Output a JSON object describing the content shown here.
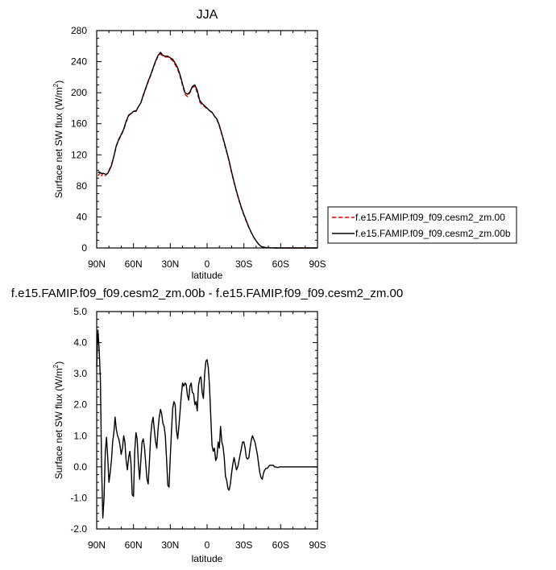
{
  "chart_data": [
    {
      "type": "line",
      "title": "JJA",
      "xlabel": "latitude",
      "ylabel_main": "Surface net SW flux (W/m",
      "ylabel_sup": "2",
      "ylabel_close": ")",
      "xlim": [
        90,
        -90
      ],
      "ylim": [
        0,
        280
      ],
      "x_ticks": [
        90,
        60,
        30,
        0,
        -30,
        -60,
        -90
      ],
      "x_tick_labels": [
        "90N",
        "60N",
        "30N",
        "0",
        "30S",
        "60S",
        "90S"
      ],
      "y_ticks": [
        0,
        40,
        80,
        120,
        160,
        200,
        240,
        280
      ],
      "y_tick_labels": [
        "0",
        "40",
        "80",
        "120",
        "160",
        "200",
        "240",
        "280"
      ],
      "legend_position": "right",
      "series": [
        {
          "name": "f.e15.FAMIP.f09_f09.cesm2_zm.00",
          "color": "#e00000",
          "dash": "dashed",
          "x": [
            89,
            88,
            87,
            86,
            85,
            84,
            83,
            82,
            81,
            80,
            78,
            76,
            74,
            72,
            70,
            68,
            66,
            64,
            62,
            60,
            58,
            56,
            54,
            52,
            50,
            48,
            46,
            44,
            42,
            40,
            38,
            36,
            34,
            32,
            30,
            28,
            26,
            24,
            22,
            20,
            18,
            16,
            14,
            12,
            10,
            8,
            6,
            4,
            2,
            0,
            -2,
            -4,
            -6,
            -8,
            -10,
            -12,
            -14,
            -16,
            -18,
            -20,
            -22,
            -24,
            -26,
            -28,
            -30,
            -32,
            -34,
            -36,
            -38,
            -40,
            -42,
            -44,
            -46,
            -48,
            -50,
            -52,
            -54,
            -56,
            -58,
            -60,
            -62,
            -64,
            -66,
            -68,
            -70,
            -72,
            -75,
            -80,
            -85,
            -90
          ],
          "y": [
            93,
            95,
            97,
            93,
            96,
            95,
            93,
            95,
            97,
            100,
            107,
            118,
            131,
            139,
            145,
            152,
            162,
            170,
            174,
            176,
            177,
            182,
            187,
            196,
            205,
            214,
            222,
            231,
            240,
            247,
            250,
            247,
            246,
            246,
            244,
            241,
            236,
            230,
            221,
            209,
            198,
            195,
            200,
            207,
            208,
            200,
            188,
            184,
            182,
            179,
            177,
            174,
            170,
            165,
            157,
            146,
            135,
            123,
            111,
            97,
            84,
            72,
            61,
            51,
            42,
            34,
            26,
            20,
            14,
            9,
            5,
            2,
            1,
            0.5,
            0.3,
            0.2,
            0.1,
            0,
            0,
            0,
            0,
            0,
            0,
            0,
            0,
            0,
            0,
            0,
            0,
            0
          ]
        },
        {
          "name": "f.e15.FAMIP.f09_f09.cesm2_zm.00b",
          "color": "#000000",
          "dash": "solid",
          "x": [
            89,
            88,
            87,
            86,
            85,
            84,
            83,
            82,
            81,
            80,
            78,
            76,
            74,
            72,
            70,
            68,
            66,
            64,
            62,
            60,
            58,
            56,
            54,
            52,
            50,
            48,
            46,
            44,
            42,
            40,
            38,
            36,
            34,
            32,
            30,
            28,
            26,
            24,
            22,
            20,
            18,
            16,
            14,
            12,
            10,
            8,
            6,
            4,
            2,
            0,
            -2,
            -4,
            -6,
            -8,
            -10,
            -12,
            -14,
            -16,
            -18,
            -20,
            -22,
            -24,
            -26,
            -28,
            -30,
            -32,
            -34,
            -36,
            -38,
            -40,
            -42,
            -44,
            -46,
            -48,
            -50,
            -52,
            -54,
            -56,
            -58,
            -60,
            -62,
            -64,
            -66,
            -68,
            -70,
            -72,
            -75,
            -80,
            -85,
            -90
          ],
          "y": [
            97,
            98,
            97,
            96,
            96,
            96,
            95,
            95,
            96,
            99,
            106,
            118,
            132,
            140,
            146,
            153,
            163,
            171,
            173,
            176,
            176,
            182,
            187,
            197,
            206,
            215,
            223,
            232,
            241,
            248,
            252,
            248,
            247,
            247,
            245,
            243,
            238,
            232,
            223,
            211,
            200,
            198,
            201,
            208,
            210,
            203,
            190,
            186,
            183,
            180,
            177,
            175,
            170,
            166,
            158,
            147,
            136,
            124,
            112,
            98,
            85,
            73,
            62,
            52,
            43,
            35,
            27,
            20,
            14,
            9,
            5,
            2,
            1,
            0.5,
            0.3,
            0.2,
            0.1,
            0,
            0,
            0,
            0,
            0,
            0,
            0,
            0,
            0,
            0,
            0,
            0,
            0
          ]
        }
      ]
    },
    {
      "type": "line",
      "title": "f.e15.FAMIP.f09_f09.cesm2_zm.00b - f.e15.FAMIP.f09_f09.cesm2_zm.00",
      "xlabel": "latitude",
      "ylabel_main": "Surface net SW flux (W/m",
      "ylabel_sup": "2",
      "ylabel_close": ")",
      "xlim": [
        90,
        -90
      ],
      "ylim": [
        -2.0,
        5.0
      ],
      "x_ticks": [
        90,
        60,
        30,
        0,
        -30,
        -60,
        -90
      ],
      "x_tick_labels": [
        "90N",
        "60N",
        "30N",
        "0",
        "30S",
        "60S",
        "90S"
      ],
      "y_ticks": [
        -2.0,
        -1.0,
        0.0,
        1.0,
        2.0,
        3.0,
        4.0,
        5.0
      ],
      "y_tick_labels": [
        "-2.0",
        "-1.0",
        "0.0",
        "1.0",
        "2.0",
        "3.0",
        "4.0",
        "5.0"
      ],
      "series": [
        {
          "color": "#000000",
          "dash": "solid",
          "x": [
            90,
            89,
            88,
            87,
            86,
            85,
            84,
            83,
            82,
            81,
            80,
            79,
            78,
            77,
            76,
            75,
            74,
            73,
            72,
            71,
            70,
            69,
            68,
            67,
            66,
            65,
            64,
            63,
            62,
            61,
            60,
            59,
            58,
            57,
            56,
            55,
            54,
            53,
            52,
            51,
            50,
            49,
            48,
            47,
            46,
            45,
            44,
            43,
            42,
            41,
            40,
            39,
            38,
            37,
            36,
            35,
            34,
            33,
            32,
            31,
            30,
            29,
            28,
            27,
            26,
            25,
            24,
            23,
            22,
            21,
            20,
            19,
            18,
            17,
            16,
            15,
            14,
            13,
            12,
            11,
            10,
            9,
            8,
            7,
            6,
            5,
            4,
            3,
            2,
            1,
            0,
            -1,
            -2,
            -3,
            -4,
            -5,
            -6,
            -7,
            -8,
            -9,
            -10,
            -11,
            -12,
            -13,
            -14,
            -15,
            -16,
            -17,
            -18,
            -19,
            -20,
            -21,
            -22,
            -23,
            -24,
            -25,
            -26,
            -27,
            -28,
            -29,
            -30,
            -31,
            -32,
            -33,
            -34,
            -35,
            -36,
            -37,
            -38,
            -39,
            -40,
            -41,
            -42,
            -43,
            -44,
            -45,
            -46,
            -47,
            -48,
            -49,
            -50,
            -51,
            -52,
            -53,
            -54,
            -55,
            -56,
            -57,
            -58,
            -59,
            -60,
            -62,
            -65,
            -70,
            -75,
            -80,
            -85,
            -90
          ],
          "y": [
            3.2,
            4.4,
            3.8,
            2.8,
            0.0,
            -1.65,
            -1.0,
            0.5,
            0.95,
            0.3,
            -0.5,
            -0.2,
            0.2,
            0.8,
            1.1,
            1.6,
            1.2,
            1.0,
            0.9,
            0.7,
            0.4,
            0.6,
            1.0,
            0.8,
            0.2,
            -0.1,
            0.3,
            0.5,
            0.1,
            -0.9,
            -0.95,
            0.5,
            1.1,
            0.9,
            0.1,
            -0.4,
            0.2,
            0.8,
            0.9,
            0.6,
            0.1,
            -0.4,
            -0.55,
            0.2,
            1.0,
            1.4,
            1.6,
            1.2,
            0.8,
            0.6,
            1.2,
            1.6,
            1.85,
            1.7,
            1.4,
            1.3,
            1.0,
            0.2,
            -0.6,
            -0.65,
            0.3,
            1.2,
            1.9,
            2.1,
            2.0,
            1.2,
            0.9,
            1.3,
            1.8,
            2.3,
            2.7,
            2.6,
            2.7,
            2.65,
            2.3,
            2.15,
            2.6,
            2.7,
            2.4,
            2.35,
            2.0,
            2.1,
            1.8,
            2.6,
            2.85,
            2.9,
            2.4,
            2.2,
            3.0,
            3.4,
            3.45,
            3.2,
            2.6,
            1.6,
            0.7,
            0.5,
            0.6,
            0.2,
            0.3,
            0.8,
            0.6,
            1.3,
            0.8,
            0.65,
            0.3,
            -0.3,
            -0.45,
            -0.7,
            -0.75,
            -0.55,
            -0.2,
            0.1,
            0.3,
            0.1,
            -0.1,
            0.0,
            0.2,
            0.4,
            0.6,
            0.8,
            0.8,
            0.6,
            0.3,
            0.25,
            0.3,
            0.6,
            0.85,
            1.0,
            0.9,
            0.8,
            0.6,
            0.4,
            0.1,
            -0.2,
            -0.35,
            -0.4,
            -0.2,
            -0.1,
            -0.05,
            -0.05,
            0.0,
            0.05,
            0.05,
            0.05,
            0.05,
            0.0,
            0.0,
            -0.02,
            -0.02,
            0.0,
            0.0,
            0.0,
            0.0,
            0.0,
            0.0,
            0.0,
            0.0,
            0.0
          ]
        }
      ]
    }
  ]
}
